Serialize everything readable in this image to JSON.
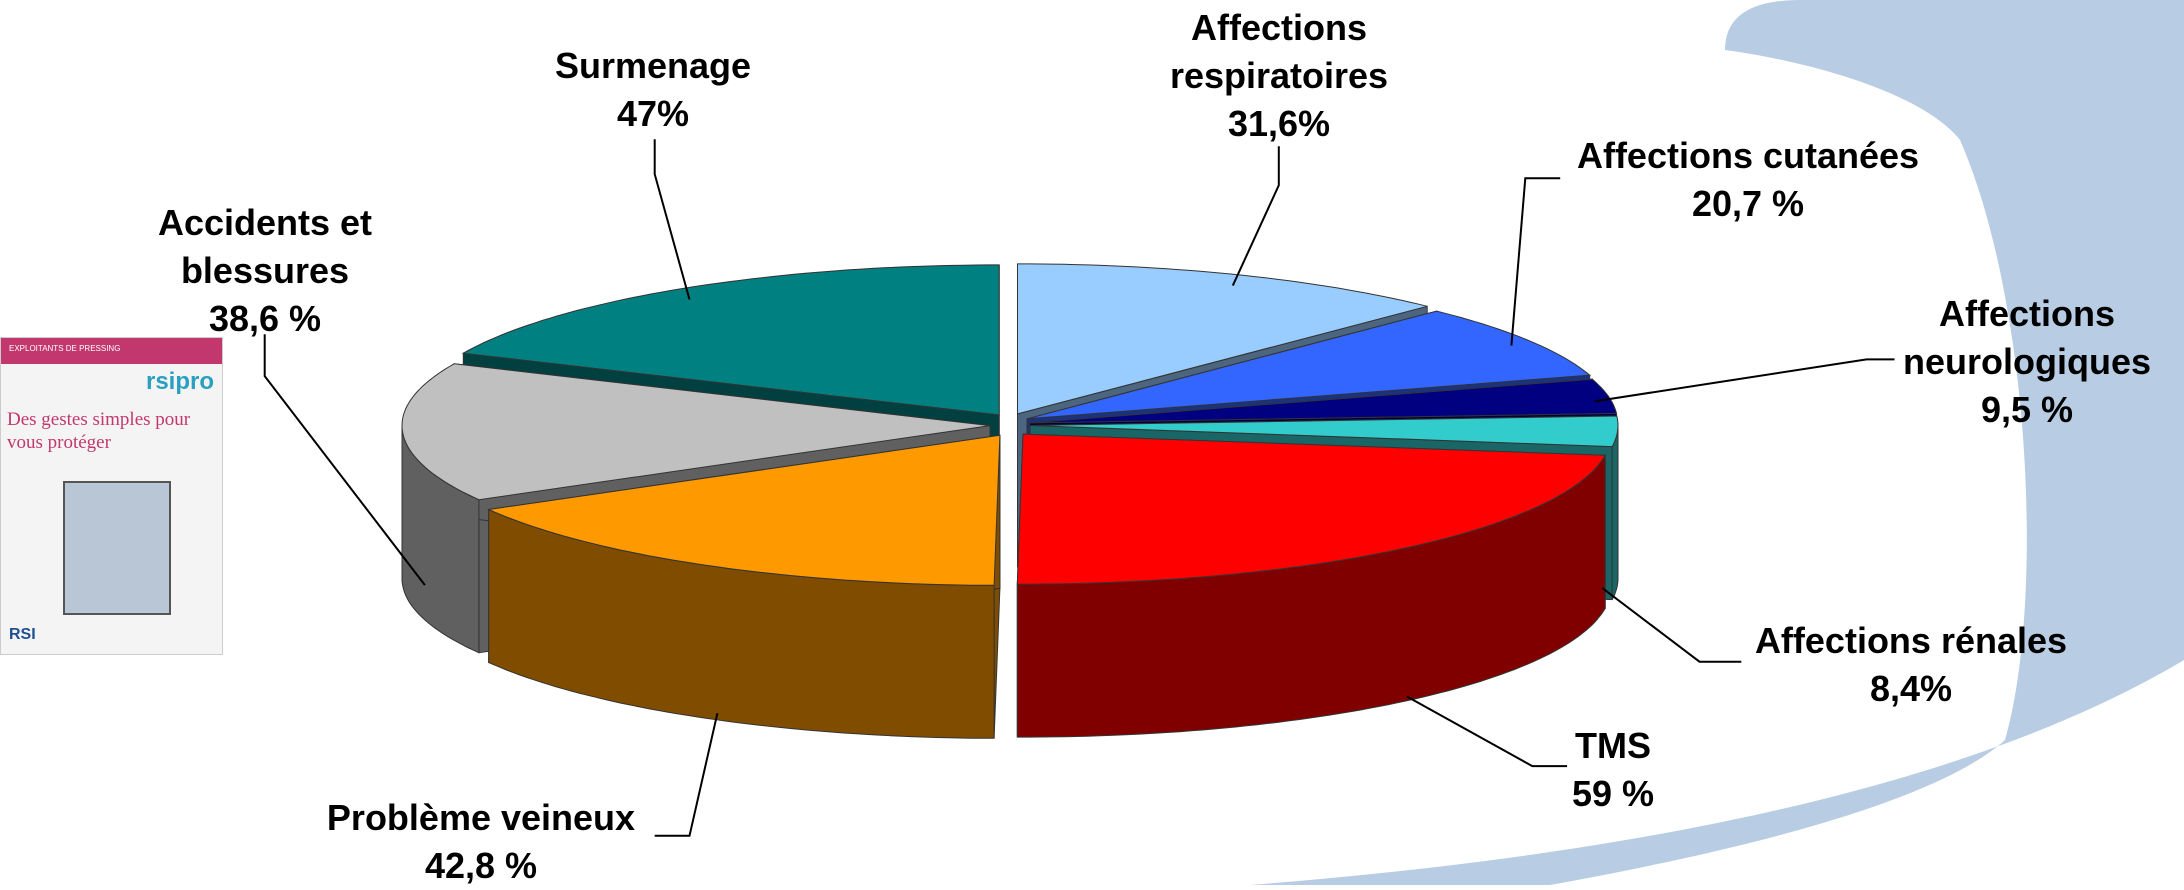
{
  "chart_data": {
    "type": "pie",
    "categories": [
      "Affections respiratoires",
      "Affections cutanées",
      "Affections neurologiques",
      "Affections rénales",
      "TMS",
      "Problème veineux",
      "Accidents et blessures",
      "Surmenage"
    ],
    "values": [
      31.6,
      20.7,
      9.5,
      8.4,
      59,
      42.8,
      38.6,
      47
    ],
    "value_labels": [
      "31,6%",
      "20,7 %",
      "9,5 %",
      "8,4%",
      "59 %",
      "42,8 %",
      "38,6 %",
      "47%"
    ],
    "colors": [
      "#99ccff",
      "#3366ff",
      "#000080",
      "#33cccc",
      "#ff0000",
      "#ff9900",
      "#c0c0c0",
      "#008080"
    ]
  },
  "brochure": {
    "header": "EXPLOITANTS DE PRESSING",
    "brand": "rsipro",
    "title": "Des gestes simples pour vous protéger",
    "footer": "RSI"
  }
}
